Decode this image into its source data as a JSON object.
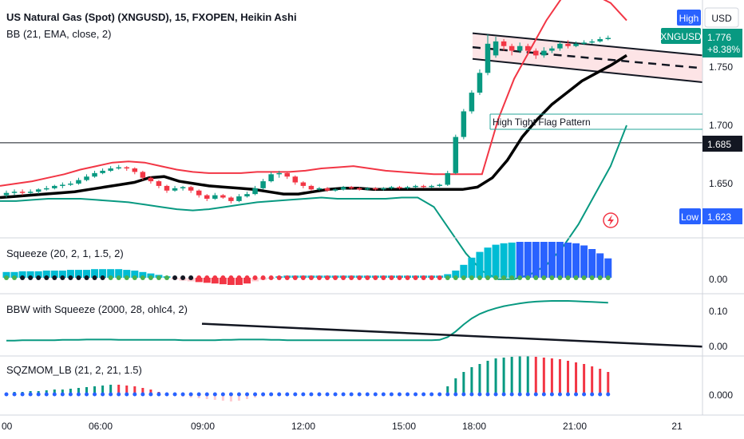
{
  "header": {
    "title": "US Natural Gas (Spot) (XNGUSD), 15, FXOPEN, Heikin Ashi",
    "overlay": "BB (21, EMA, close, 2)"
  },
  "badges": {
    "high_label": "High",
    "currency": "USD",
    "symbol": "XNGUSD",
    "last_price": "1.776",
    "change_pct": "+8.38%",
    "crosshair_price": "1.685",
    "low_label": "Low",
    "low_value": "1.623"
  },
  "annotation": "High Tight Flag Pattern",
  "panes": [
    {
      "name": "Squeeze (20, 2, 1, 1.5, 2)",
      "y_tick": "0.00"
    },
    {
      "name": "BBW with Squeeze (2000, 28, ohlc4, 2)",
      "y_ticks": [
        "0.10",
        "0.00"
      ]
    },
    {
      "name": "SQZMOM_LB (21, 2, 21, 1.5)",
      "y_tick": "0.000"
    }
  ],
  "colors": {
    "up": "#089981",
    "down": "#f23645",
    "bb_upper": "#f23645",
    "bb_lower": "#089981",
    "basis": "#000000",
    "flag_fill": "#fde4e6",
    "hist_cyan": "#00bcd4",
    "hist_blue": "#2962ff",
    "pink": "#ffcdd2",
    "light_green": "#a5d6a7"
  },
  "chart_data": {
    "type": "candlestick",
    "x_ticks": [
      "00",
      "06:00",
      "09:00",
      "12:00",
      "15:00",
      "18:00",
      "21:00",
      "21"
    ],
    "y_ticks": [
      1.75,
      1.7,
      1.65
    ],
    "candles": [
      {
        "o": 1.64,
        "c": 1.642,
        "h": 1.644,
        "l": 1.638
      },
      {
        "o": 1.642,
        "c": 1.643,
        "h": 1.645,
        "l": 1.64
      },
      {
        "o": 1.643,
        "c": 1.642,
        "h": 1.645,
        "l": 1.64
      },
      {
        "o": 1.642,
        "c": 1.643,
        "h": 1.645,
        "l": 1.641
      },
      {
        "o": 1.643,
        "c": 1.645,
        "h": 1.646,
        "l": 1.641
      },
      {
        "o": 1.645,
        "c": 1.646,
        "h": 1.648,
        "l": 1.644
      },
      {
        "o": 1.646,
        "c": 1.648,
        "h": 1.649,
        "l": 1.645
      },
      {
        "o": 1.648,
        "c": 1.649,
        "h": 1.651,
        "l": 1.646
      },
      {
        "o": 1.649,
        "c": 1.65,
        "h": 1.652,
        "l": 1.648
      },
      {
        "o": 1.65,
        "c": 1.653,
        "h": 1.655,
        "l": 1.649
      },
      {
        "o": 1.653,
        "c": 1.656,
        "h": 1.658,
        "l": 1.652
      },
      {
        "o": 1.656,
        "c": 1.659,
        "h": 1.661,
        "l": 1.655
      },
      {
        "o": 1.659,
        "c": 1.661,
        "h": 1.663,
        "l": 1.658
      },
      {
        "o": 1.661,
        "c": 1.663,
        "h": 1.665,
        "l": 1.66
      },
      {
        "o": 1.663,
        "c": 1.664,
        "h": 1.666,
        "l": 1.662
      },
      {
        "o": 1.664,
        "c": 1.663,
        "h": 1.665,
        "l": 1.661
      },
      {
        "o": 1.663,
        "c": 1.66,
        "h": 1.664,
        "l": 1.658
      },
      {
        "o": 1.66,
        "c": 1.655,
        "h": 1.661,
        "l": 1.653
      },
      {
        "o": 1.655,
        "c": 1.652,
        "h": 1.656,
        "l": 1.65
      },
      {
        "o": 1.652,
        "c": 1.648,
        "h": 1.653,
        "l": 1.646
      },
      {
        "o": 1.648,
        "c": 1.644,
        "h": 1.649,
        "l": 1.642
      },
      {
        "o": 1.644,
        "c": 1.646,
        "h": 1.648,
        "l": 1.643
      },
      {
        "o": 1.646,
        "c": 1.647,
        "h": 1.648,
        "l": 1.644
      },
      {
        "o": 1.647,
        "c": 1.644,
        "h": 1.648,
        "l": 1.642
      },
      {
        "o": 1.644,
        "c": 1.64,
        "h": 1.645,
        "l": 1.638
      },
      {
        "o": 1.64,
        "c": 1.637,
        "h": 1.641,
        "l": 1.635
      },
      {
        "o": 1.637,
        "c": 1.64,
        "h": 1.642,
        "l": 1.636
      },
      {
        "o": 1.64,
        "c": 1.638,
        "h": 1.641,
        "l": 1.637
      },
      {
        "o": 1.638,
        "c": 1.635,
        "h": 1.639,
        "l": 1.633
      },
      {
        "o": 1.635,
        "c": 1.639,
        "h": 1.641,
        "l": 1.634
      },
      {
        "o": 1.639,
        "c": 1.641,
        "h": 1.643,
        "l": 1.638
      },
      {
        "o": 1.641,
        "c": 1.646,
        "h": 1.648,
        "l": 1.64
      },
      {
        "o": 1.646,
        "c": 1.652,
        "h": 1.654,
        "l": 1.645
      },
      {
        "o": 1.652,
        "c": 1.658,
        "h": 1.66,
        "l": 1.651
      },
      {
        "o": 1.658,
        "c": 1.659,
        "h": 1.661,
        "l": 1.655
      },
      {
        "o": 1.659,
        "c": 1.656,
        "h": 1.66,
        "l": 1.654
      },
      {
        "o": 1.656,
        "c": 1.651,
        "h": 1.657,
        "l": 1.649
      },
      {
        "o": 1.651,
        "c": 1.648,
        "h": 1.652,
        "l": 1.646
      },
      {
        "o": 1.648,
        "c": 1.645,
        "h": 1.649,
        "l": 1.644
      },
      {
        "o": 1.645,
        "c": 1.646,
        "h": 1.647,
        "l": 1.644
      },
      {
        "o": 1.646,
        "c": 1.644,
        "h": 1.647,
        "l": 1.643
      },
      {
        "o": 1.644,
        "c": 1.645,
        "h": 1.646,
        "l": 1.643
      },
      {
        "o": 1.645,
        "c": 1.647,
        "h": 1.648,
        "l": 1.644
      },
      {
        "o": 1.647,
        "c": 1.646,
        "h": 1.648,
        "l": 1.645
      },
      {
        "o": 1.646,
        "c": 1.645,
        "h": 1.647,
        "l": 1.644
      },
      {
        "o": 1.645,
        "c": 1.646,
        "h": 1.647,
        "l": 1.644
      },
      {
        "o": 1.646,
        "c": 1.645,
        "h": 1.647,
        "l": 1.644
      },
      {
        "o": 1.645,
        "c": 1.646,
        "h": 1.647,
        "l": 1.644
      },
      {
        "o": 1.646,
        "c": 1.647,
        "h": 1.648,
        "l": 1.645
      },
      {
        "o": 1.647,
        "c": 1.646,
        "h": 1.648,
        "l": 1.645
      },
      {
        "o": 1.646,
        "c": 1.647,
        "h": 1.648,
        "l": 1.645
      },
      {
        "o": 1.647,
        "c": 1.648,
        "h": 1.649,
        "l": 1.646
      },
      {
        "o": 1.648,
        "c": 1.647,
        "h": 1.649,
        "l": 1.646
      },
      {
        "o": 1.647,
        "c": 1.648,
        "h": 1.649,
        "l": 1.646
      },
      {
        "o": 1.648,
        "c": 1.649,
        "h": 1.65,
        "l": 1.647
      },
      {
        "o": 1.649,
        "c": 1.659,
        "h": 1.661,
        "l": 1.648
      },
      {
        "o": 1.659,
        "c": 1.69,
        "h": 1.692,
        "l": 1.658
      },
      {
        "o": 1.69,
        "c": 1.712,
        "h": 1.714,
        "l": 1.688
      },
      {
        "o": 1.712,
        "c": 1.728,
        "h": 1.73,
        "l": 1.71
      },
      {
        "o": 1.728,
        "c": 1.745,
        "h": 1.748,
        "l": 1.726
      },
      {
        "o": 1.745,
        "c": 1.77,
        "h": 1.778,
        "l": 1.743
      },
      {
        "o": 1.76,
        "c": 1.772,
        "h": 1.776,
        "l": 1.758
      },
      {
        "o": 1.772,
        "c": 1.768,
        "h": 1.774,
        "l": 1.764
      },
      {
        "o": 1.768,
        "c": 1.764,
        "h": 1.77,
        "l": 1.76
      },
      {
        "o": 1.764,
        "c": 1.768,
        "h": 1.771,
        "l": 1.762
      },
      {
        "o": 1.768,
        "c": 1.764,
        "h": 1.77,
        "l": 1.761
      },
      {
        "o": 1.764,
        "c": 1.76,
        "h": 1.766,
        "l": 1.757
      },
      {
        "o": 1.76,
        "c": 1.764,
        "h": 1.767,
        "l": 1.758
      },
      {
        "o": 1.764,
        "c": 1.766,
        "h": 1.768,
        "l": 1.762
      },
      {
        "o": 1.766,
        "c": 1.77,
        "h": 1.772,
        "l": 1.764
      },
      {
        "o": 1.77,
        "c": 1.768,
        "h": 1.773,
        "l": 1.766
      },
      {
        "o": 1.768,
        "c": 1.77,
        "h": 1.772,
        "l": 1.767
      },
      {
        "o": 1.77,
        "c": 1.771,
        "h": 1.773,
        "l": 1.769
      },
      {
        "o": 1.771,
        "c": 1.772,
        "h": 1.774,
        "l": 1.77
      },
      {
        "o": 1.772,
        "c": 1.774,
        "h": 1.776,
        "l": 1.771
      },
      {
        "o": 1.774,
        "c": 1.775,
        "h": 1.777,
        "l": 1.773
      }
    ],
    "bb_upper": [
      1.648,
      1.65,
      1.652,
      1.655,
      1.658,
      1.662,
      1.665,
      1.668,
      1.669,
      1.668,
      1.665,
      1.662,
      1.66,
      1.659,
      1.659,
      1.659,
      1.66,
      1.66,
      1.66,
      1.661,
      1.663,
      1.664,
      1.665,
      1.663,
      1.661,
      1.66,
      1.659,
      1.658,
      1.658,
      1.658,
      1.658,
      1.705,
      1.74,
      1.765,
      1.79,
      1.81,
      1.815,
      1.812,
      1.805,
      1.79
    ],
    "bb_lower": [
      1.635,
      1.635,
      1.636,
      1.637,
      1.637,
      1.637,
      1.636,
      1.635,
      1.634,
      1.632,
      1.63,
      1.628,
      1.627,
      1.628,
      1.63,
      1.632,
      1.634,
      1.635,
      1.636,
      1.637,
      1.638,
      1.637,
      1.637,
      1.637,
      1.637,
      1.638,
      1.638,
      1.63,
      1.61,
      1.59,
      1.575,
      1.568,
      1.568,
      1.572,
      1.58,
      1.595,
      1.615,
      1.64,
      1.665,
      1.7
    ],
    "basis": [
      1.638,
      1.639,
      1.64,
      1.641,
      1.642,
      1.643,
      1.645,
      1.647,
      1.649,
      1.651,
      1.655,
      1.656,
      1.652,
      1.65,
      1.648,
      1.647,
      1.646,
      1.645,
      1.643,
      1.641,
      1.641,
      1.643,
      1.645,
      1.646,
      1.646,
      1.645,
      1.645,
      1.645,
      1.645,
      1.645,
      1.645,
      1.645,
      1.647,
      1.655,
      1.67,
      1.69,
      1.705,
      1.718,
      1.728,
      1.738,
      1.745,
      1.752,
      1.76
    ],
    "flag": {
      "upper_start": 1.779,
      "upper_end": 1.76,
      "lower_start": 1.757,
      "lower_end": 1.737,
      "mid_start": 1.767,
      "mid_end": 1.749
    },
    "crosshair": 1.685,
    "squeeze_hist": [
      0.8,
      0.8,
      0.9,
      0.9,
      0.9,
      1.0,
      1.0,
      1.0,
      1.1,
      1.1,
      1.1,
      1.2,
      1.2,
      1.2,
      1.2,
      1.1,
      1.0,
      0.8,
      0.6,
      0.4,
      0.2,
      -0.2,
      -0.4,
      -0.5,
      -0.6,
      -0.7,
      -0.8,
      -0.9,
      -1.0,
      -1.0,
      -0.8,
      -0.5,
      -0.3,
      0.0,
      0.2,
      0.3,
      0.3,
      0.3,
      0.3,
      0.3,
      0.3,
      0.3,
      0.3,
      0.3,
      0.3,
      0.3,
      0.3,
      0.3,
      0.3,
      0.3,
      0.3,
      0.3,
      0.3,
      0.3,
      0.3,
      0.5,
      1.0,
      1.8,
      2.8,
      3.6,
      4.2,
      4.6,
      4.8,
      4.9,
      5.0,
      5.0,
      5.0,
      5.0,
      5.0,
      5.0,
      4.9,
      4.8,
      4.5,
      4.0,
      3.4,
      2.7
    ],
    "squeeze_dots": [
      "g",
      "g",
      "k",
      "k",
      "k",
      "k",
      "k",
      "k",
      "k",
      "k",
      "k",
      "k",
      "k",
      "g",
      "g",
      "g",
      "g",
      "g",
      "g",
      "g",
      "g",
      "k",
      "k",
      "k",
      "r",
      "r",
      "r",
      "r",
      "r",
      "r",
      "r",
      "r",
      "r",
      "r",
      "r",
      "r",
      "r",
      "r",
      "r",
      "r",
      "r",
      "r",
      "r",
      "r",
      "r",
      "r",
      "r",
      "r",
      "r",
      "r",
      "r",
      "r",
      "r",
      "r",
      "r",
      "g",
      "g",
      "g",
      "g",
      "g",
      "g",
      "g",
      "g",
      "g",
      "g",
      "g",
      "g",
      "g",
      "g",
      "g",
      "g",
      "g",
      "g",
      "g",
      "g",
      "g"
    ],
    "bbw": [
      0.012,
      0.012,
      0.013,
      0.013,
      0.013,
      0.013,
      0.013,
      0.014,
      0.014,
      0.014,
      0.015,
      0.015,
      0.015,
      0.015,
      0.014,
      0.014,
      0.014,
      0.014,
      0.014,
      0.014,
      0.014,
      0.014,
      0.013,
      0.013,
      0.013,
      0.013,
      0.013,
      0.014,
      0.014,
      0.015,
      0.015,
      0.015,
      0.015,
      0.014,
      0.014,
      0.013,
      0.013,
      0.013,
      0.013,
      0.013,
      0.013,
      0.013,
      0.013,
      0.013,
      0.013,
      0.013,
      0.013,
      0.013,
      0.013,
      0.013,
      0.013,
      0.013,
      0.013,
      0.013,
      0.014,
      0.022,
      0.038,
      0.058,
      0.075,
      0.088,
      0.097,
      0.104,
      0.11,
      0.114,
      0.118,
      0.121,
      0.123,
      0.124,
      0.125,
      0.125,
      0.125,
      0.124,
      0.123,
      0.122,
      0.121,
      0.12
    ],
    "bbw_trend": {
      "start": 0.06,
      "end": -0.005
    },
    "sqz_mom": [
      0.002,
      0.003,
      0.003,
      0.004,
      0.004,
      0.005,
      0.006,
      0.006,
      0.007,
      0.008,
      0.009,
      0.01,
      0.011,
      0.012,
      0.012,
      0.011,
      0.01,
      0.008,
      0.006,
      0.003,
      0.001,
      -0.001,
      -0.003,
      -0.004,
      -0.005,
      -0.006,
      -0.007,
      -0.008,
      -0.009,
      -0.008,
      -0.006,
      -0.004,
      -0.003,
      -0.002,
      -0.002,
      -0.001,
      -0.001,
      0.0,
      0.0,
      0.0,
      0.0,
      0.0,
      0.0,
      0.0,
      0.0,
      0.0,
      0.0,
      0.0,
      0.0,
      0.0,
      0.0,
      0.0,
      0.0,
      0.0,
      0.0,
      0.01,
      0.02,
      0.028,
      0.034,
      0.038,
      0.042,
      0.045,
      0.046,
      0.047,
      0.048,
      0.048,
      0.047,
      0.046,
      0.045,
      0.044,
      0.042,
      0.04,
      0.038,
      0.035,
      0.032,
      0.028
    ]
  }
}
